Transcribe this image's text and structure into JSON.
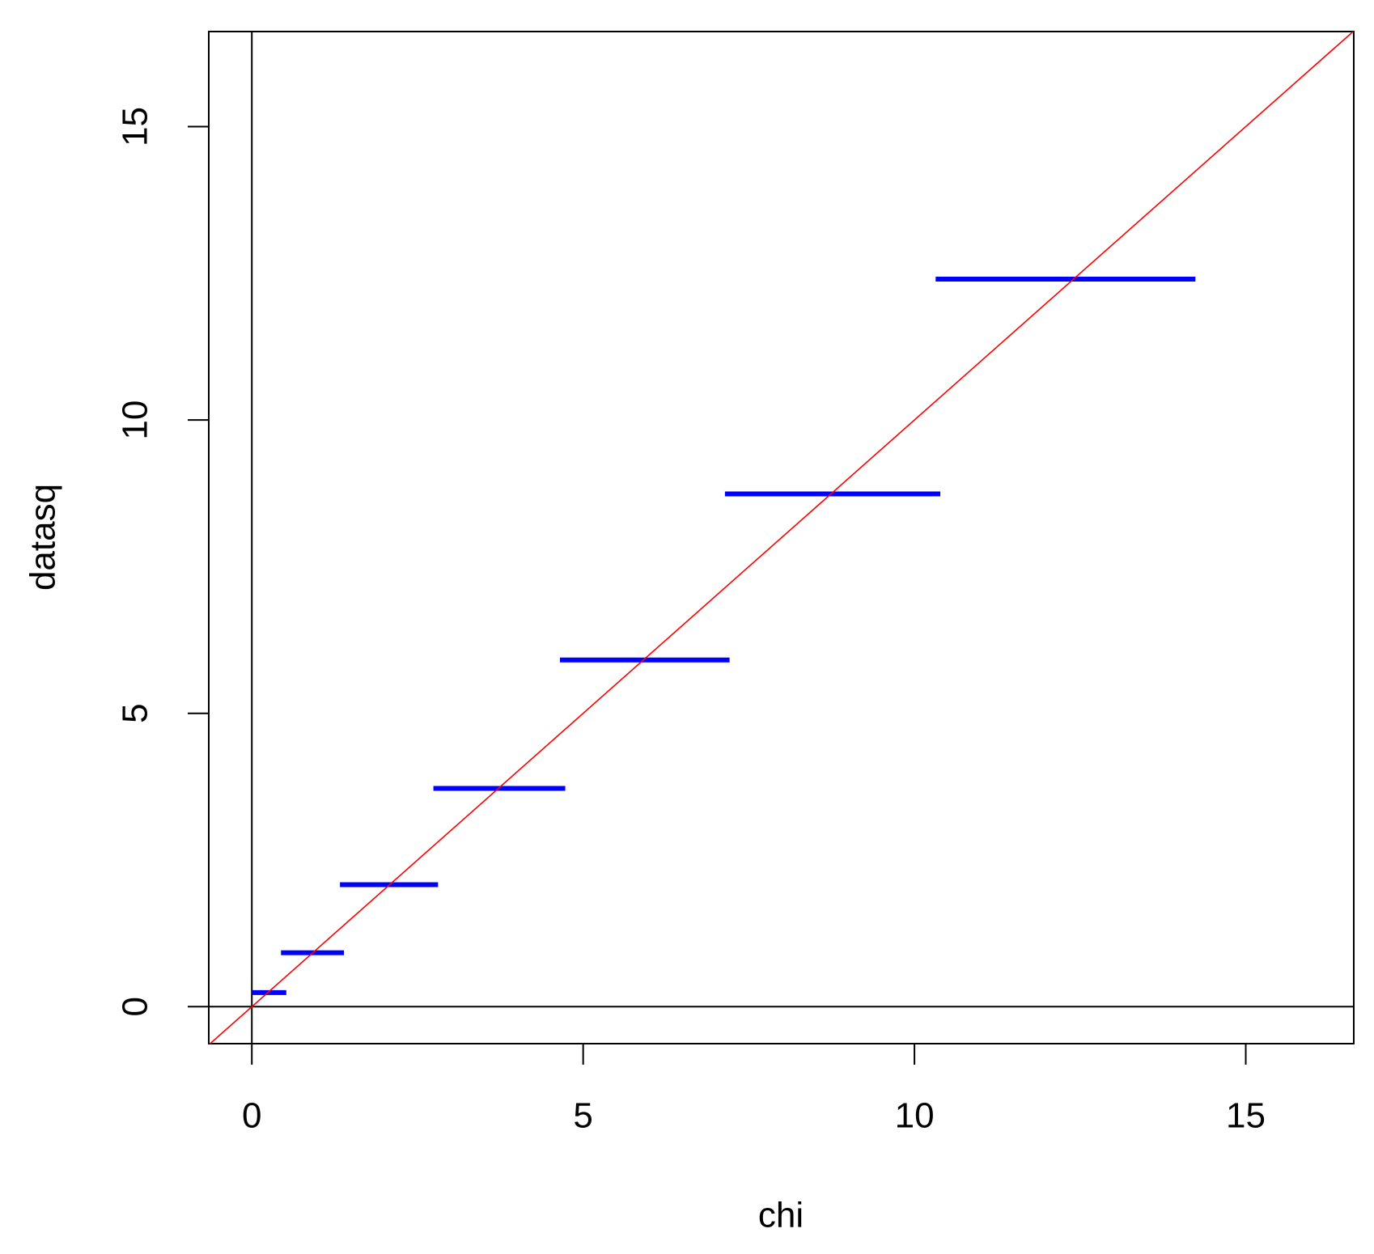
{
  "chart_data": {
    "type": "segment",
    "x_label": "chi",
    "y_label": "datasq",
    "xlim": [
      -0.65,
      16.63
    ],
    "ylim": [
      -0.63,
      16.62
    ],
    "xticks": [
      0,
      5,
      10,
      15
    ],
    "yticks": [
      0,
      5,
      10,
      15
    ],
    "hline": 0,
    "vline": 0,
    "abline": {
      "intercept": 0,
      "slope": 1,
      "color": "red"
    },
    "series": [
      {
        "color": "blue",
        "values": [
          0.24,
          0.92,
          2.08,
          3.72,
          5.91,
          8.74,
          12.4
        ],
        "x_start": [
          0,
          0.44,
          1.33,
          2.74,
          4.65,
          7.14,
          10.32
        ],
        "x_end": [
          0.52,
          1.39,
          2.81,
          4.73,
          7.21,
          10.39,
          14.24
        ]
      }
    ]
  }
}
